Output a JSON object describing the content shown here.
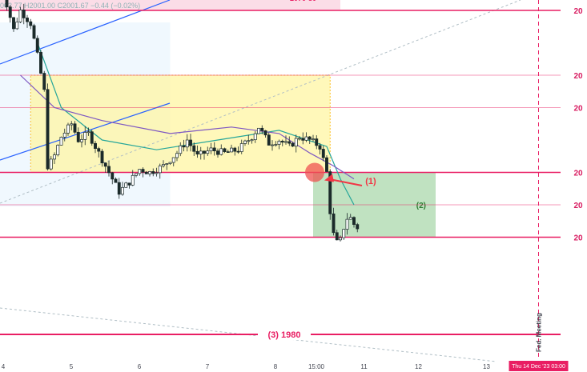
{
  "header": {
    "ohlc_text": "002.77  H2001.00  C2001.67  −0.44 (−0.02%)"
  },
  "colors": {
    "resistance_line": "#e91e63",
    "yellow_box": "#fff59d",
    "green_box": "#a5d6a7",
    "pink_zone": "#f8bbd0",
    "blue_zone": "#e3f2fd",
    "trend_line": "#2962ff",
    "ma_green": "#26a69a",
    "ma_purple": "#7e57c2",
    "candle": "#1b2a2a",
    "red_arrow": "#f23645"
  },
  "chart_data": {
    "type": "candlestick",
    "title": "",
    "y_axis": {
      "range": [
        1976,
        2090
      ],
      "tick_labels": [
        {
          "value": 2090,
          "label": "20"
        },
        {
          "value": 2080,
          "label": "20"
        },
        {
          "value": 2060,
          "label": "20"
        },
        {
          "value": 2050,
          "label": "20"
        },
        {
          "value": 2030,
          "label": "20"
        },
        {
          "value": 2020,
          "label": "20"
        },
        {
          "value": 2010,
          "label": "20"
        }
      ]
    },
    "x_axis": {
      "tick_labels": [
        {
          "label": "4",
          "value": 0
        },
        {
          "label": "5",
          "value": 1
        },
        {
          "label": "6",
          "value": 2
        },
        {
          "label": "7",
          "value": 3
        },
        {
          "label": "8",
          "value": 4
        },
        {
          "label": "15:00",
          "value": 4.6
        },
        {
          "label": "11",
          "value": 5.3
        },
        {
          "label": "12",
          "value": 6.1
        },
        {
          "label": "13",
          "value": 7.1
        }
      ],
      "cursor_label": "Thu 14 Dec '23   03:00",
      "cursor_value": 8.1
    },
    "horizontal_levels": [
      2090,
      2080,
      2060,
      2050,
      2030,
      2020,
      2010
    ],
    "lower_level": {
      "value": 1980,
      "label": "(3) 1980"
    },
    "zones": [
      {
        "name": "pink-zone",
        "label": "2070-80",
        "y": [
          2080,
          2090
        ],
        "x": [
          0,
          5.0
        ]
      },
      {
        "name": "yellow-consolidation-zone",
        "y": [
          2030,
          2060
        ],
        "x": [
          0.45,
          4.85
        ]
      },
      {
        "name": "green-target-zone",
        "label": "(2)",
        "y": [
          2010,
          2030
        ],
        "x": [
          4.6,
          6.4
        ]
      }
    ],
    "annotations": [
      {
        "name": "breakdown-marker",
        "label": "(1)",
        "x": 4.8,
        "y": 2030
      },
      {
        "name": "fed-meeting-marker",
        "label": "Fed. Meeting",
        "x": 8.1
      }
    ],
    "candles_close_path": [
      [
        0.0,
        2088
      ],
      [
        0.1,
        2082
      ],
      [
        0.2,
        2074
      ],
      [
        0.3,
        2080
      ],
      [
        0.45,
        2076
      ],
      [
        0.55,
        2066
      ],
      [
        0.65,
        2055
      ],
      [
        0.7,
        2032
      ],
      [
        0.78,
        2034
      ],
      [
        0.9,
        2041
      ],
      [
        1.05,
        2045
      ],
      [
        1.15,
        2040
      ],
      [
        1.3,
        2042
      ],
      [
        1.45,
        2036
      ],
      [
        1.6,
        2030
      ],
      [
        1.75,
        2024
      ],
      [
        1.9,
        2027
      ],
      [
        2.05,
        2031
      ],
      [
        2.2,
        2030
      ],
      [
        2.4,
        2032
      ],
      [
        2.6,
        2036
      ],
      [
        2.75,
        2040
      ],
      [
        2.9,
        2035
      ],
      [
        3.1,
        2037
      ],
      [
        3.3,
        2036
      ],
      [
        3.5,
        2037
      ],
      [
        3.7,
        2041
      ],
      [
        3.8,
        2044
      ],
      [
        3.95,
        2039
      ],
      [
        4.1,
        2040
      ],
      [
        4.25,
        2038
      ],
      [
        4.4,
        2041
      ],
      [
        4.55,
        2040
      ],
      [
        4.7,
        2038
      ],
      [
        4.8,
        2030
      ],
      [
        4.85,
        2018
      ],
      [
        4.92,
        2008
      ],
      [
        5.0,
        2009
      ],
      [
        5.05,
        2013
      ],
      [
        5.12,
        2017
      ],
      [
        5.2,
        2014
      ],
      [
        5.25,
        2013
      ]
    ],
    "moving_averages": [
      {
        "color_key": "ma_green",
        "points": [
          [
            0.55,
            2070
          ],
          [
            0.9,
            2050
          ],
          [
            1.5,
            2040
          ],
          [
            2.3,
            2037
          ],
          [
            3.2,
            2040
          ],
          [
            4.1,
            2043
          ],
          [
            4.8,
            2038
          ],
          [
            5.0,
            2028
          ],
          [
            5.2,
            2020
          ]
        ]
      },
      {
        "color_key": "ma_purple",
        "points": [
          [
            0.3,
            2060
          ],
          [
            0.8,
            2050
          ],
          [
            1.5,
            2046
          ],
          [
            2.5,
            2042
          ],
          [
            3.4,
            2044
          ],
          [
            4.1,
            2042
          ],
          [
            4.55,
            2036
          ],
          [
            4.9,
            2032
          ],
          [
            5.2,
            2028
          ]
        ]
      }
    ]
  }
}
